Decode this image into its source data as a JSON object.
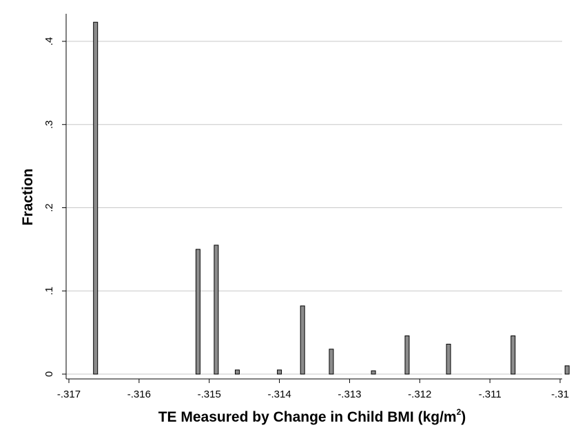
{
  "chart_data": {
    "type": "bar",
    "title": "",
    "xlabel": "TE Measured by Change in Child BMI (kg/m",
    "xlabel_superscript": "2",
    "xlabel_suffix": ")",
    "ylabel": "Fraction",
    "xlim": [
      -0.3171,
      -0.3098
    ],
    "ylim": [
      0,
      0.44
    ],
    "x_ticks": [
      -0.317,
      -0.316,
      -0.315,
      -0.314,
      -0.313,
      -0.312,
      -0.311,
      -0.31
    ],
    "x_tick_labels": [
      "-.317",
      "-.316",
      "-.315",
      "-.314",
      "-.313",
      "-.312",
      "-.311",
      "-.31"
    ],
    "y_ticks": [
      0,
      0.1,
      0.2,
      0.3,
      0.4
    ],
    "y_tick_labels": [
      "0",
      ".1",
      ".2",
      ".3",
      ".4"
    ],
    "grid": true,
    "bar_color": "#8c8c8c",
    "bar_edge_color": "#000000",
    "bars": [
      {
        "x": -0.31662,
        "value": 0.423
      },
      {
        "x": -0.31516,
        "value": 0.15
      },
      {
        "x": -0.3149,
        "value": 0.155
      },
      {
        "x": -0.3146,
        "value": 0.005
      },
      {
        "x": -0.314,
        "value": 0.005
      },
      {
        "x": -0.31367,
        "value": 0.082
      },
      {
        "x": -0.31326,
        "value": 0.03
      },
      {
        "x": -0.31266,
        "value": 0.004
      },
      {
        "x": -0.31218,
        "value": 0.046
      },
      {
        "x": -0.31159,
        "value": 0.036
      },
      {
        "x": -0.31067,
        "value": 0.046
      },
      {
        "x": -0.3099,
        "value": 0.01
      }
    ]
  }
}
